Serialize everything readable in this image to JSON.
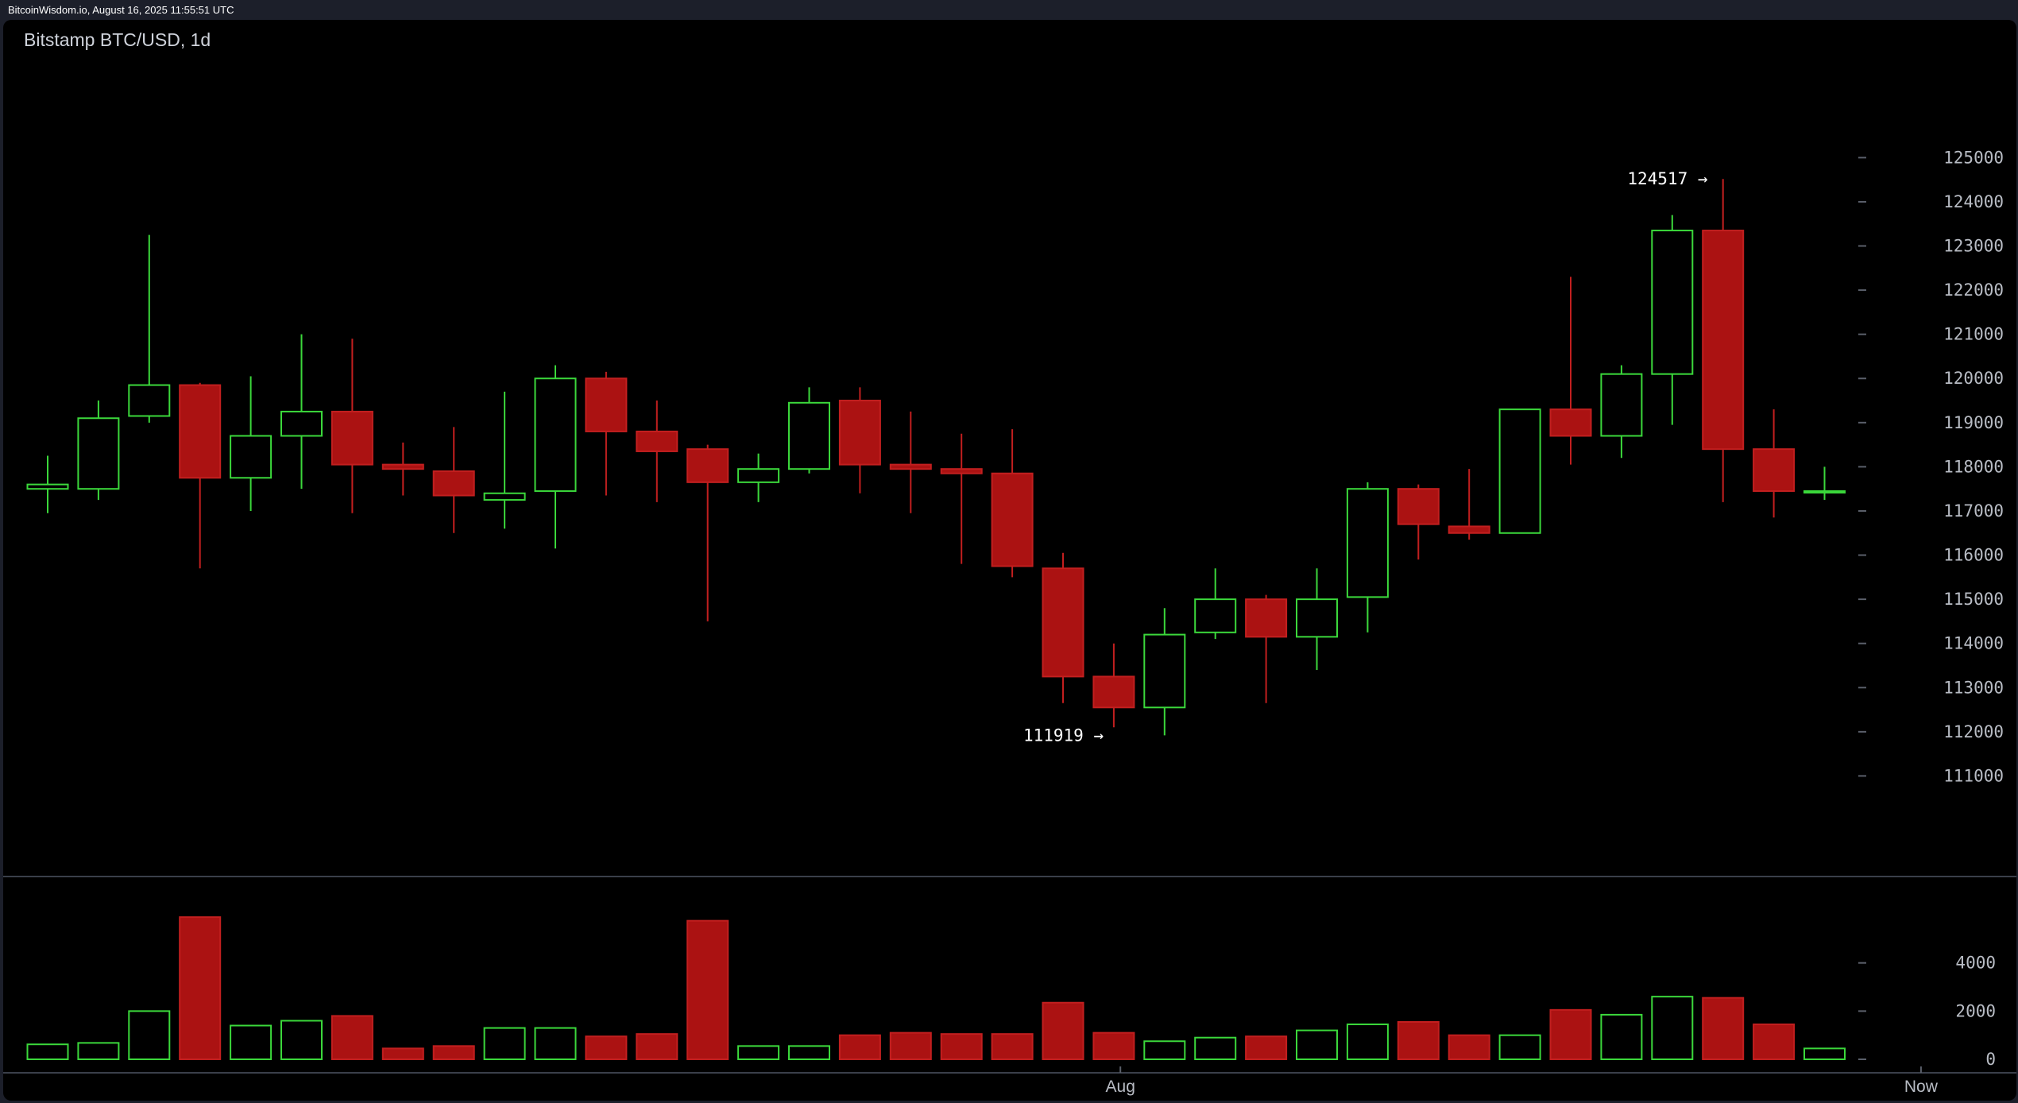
{
  "header": {
    "timestamp": "BitcoinWisdom.io, August 16, 2025 11:55:51 UTC"
  },
  "colors": {
    "up": "#3bd83b",
    "down": "#ab1212",
    "down_border": "#c21f1f",
    "background": "#000000",
    "frame": "#1c1f2a",
    "axis_text": "#b8bcc4",
    "separator": "#3a3f4a"
  },
  "chart_data": {
    "type": "candlestick",
    "title": "Bitstamp BTC/USD, 1d",
    "price_axis": {
      "ylim": [
        110000,
        126500
      ],
      "ticks": [
        "125000",
        "124000",
        "123000",
        "122000",
        "121000",
        "120000",
        "119000",
        "118000",
        "117000",
        "116000",
        "115000",
        "114000",
        "113000",
        "112000",
        "111000"
      ]
    },
    "volume_axis": {
      "ylim": [
        0,
        6200
      ],
      "ticks": [
        "4000",
        "2000",
        "0"
      ]
    },
    "x_axis": {
      "labels": [
        {
          "text": "Aug",
          "index": 21.13
        },
        {
          "text": "Now",
          "index": 36.9
        }
      ]
    },
    "annotations": [
      {
        "text": "124517 →",
        "index": 32.7,
        "price": 124517
      },
      {
        "text": "111919 →",
        "index": 20.8,
        "price": 111919
      }
    ],
    "candles": [
      {
        "o": 117500,
        "h": 118250,
        "l": 116950,
        "c": 117600,
        "v": 620
      },
      {
        "o": 117500,
        "h": 119500,
        "l": 117250,
        "c": 119100,
        "v": 680
      },
      {
        "o": 119150,
        "h": 123250,
        "l": 119000,
        "c": 119850,
        "v": 2000
      },
      {
        "o": 119850,
        "h": 119900,
        "l": 115700,
        "c": 117750,
        "v": 5900
      },
      {
        "o": 117750,
        "h": 120050,
        "l": 117000,
        "c": 118700,
        "v": 1400
      },
      {
        "o": 118700,
        "h": 121000,
        "l": 117500,
        "c": 119250,
        "v": 1600
      },
      {
        "o": 119250,
        "h": 120900,
        "l": 116950,
        "c": 118050,
        "v": 1800
      },
      {
        "o": 118050,
        "h": 118550,
        "l": 117350,
        "c": 117950,
        "v": 450
      },
      {
        "o": 117900,
        "h": 118900,
        "l": 116500,
        "c": 117350,
        "v": 550
      },
      {
        "o": 117250,
        "h": 119700,
        "l": 116600,
        "c": 117400,
        "v": 1300
      },
      {
        "o": 117450,
        "h": 120300,
        "l": 116150,
        "c": 120000,
        "v": 1300
      },
      {
        "o": 120000,
        "h": 120150,
        "l": 117350,
        "c": 118800,
        "v": 950
      },
      {
        "o": 118800,
        "h": 119500,
        "l": 117200,
        "c": 118350,
        "v": 1050
      },
      {
        "o": 118400,
        "h": 118500,
        "l": 114500,
        "c": 117650,
        "v": 5750
      },
      {
        "o": 117650,
        "h": 118300,
        "l": 117200,
        "c": 117950,
        "v": 550
      },
      {
        "o": 117950,
        "h": 119800,
        "l": 117850,
        "c": 119450,
        "v": 550
      },
      {
        "o": 119500,
        "h": 119800,
        "l": 117400,
        "c": 118050,
        "v": 1000
      },
      {
        "o": 118050,
        "h": 119250,
        "l": 116950,
        "c": 117950,
        "v": 1100
      },
      {
        "o": 117950,
        "h": 118750,
        "l": 115800,
        "c": 117850,
        "v": 1050
      },
      {
        "o": 117850,
        "h": 118850,
        "l": 115500,
        "c": 115750,
        "v": 1050
      },
      {
        "o": 115700,
        "h": 116050,
        "l": 112650,
        "c": 113250,
        "v": 2350
      },
      {
        "o": 113250,
        "h": 114000,
        "l": 112100,
        "c": 112550,
        "v": 1100
      },
      {
        "o": 112550,
        "h": 114800,
        "l": 111919,
        "c": 114200,
        "v": 750
      },
      {
        "o": 114250,
        "h": 115700,
        "l": 114100,
        "c": 115000,
        "v": 900
      },
      {
        "o": 115000,
        "h": 115100,
        "l": 112650,
        "c": 114150,
        "v": 950
      },
      {
        "o": 114150,
        "h": 115700,
        "l": 113400,
        "c": 115000,
        "v": 1200
      },
      {
        "o": 115050,
        "h": 117650,
        "l": 114250,
        "c": 117500,
        "v": 1450
      },
      {
        "o": 117500,
        "h": 117600,
        "l": 115900,
        "c": 116700,
        "v": 1550
      },
      {
        "o": 116650,
        "h": 117950,
        "l": 116350,
        "c": 116500,
        "v": 1000
      },
      {
        "o": 116500,
        "h": 119300,
        "l": 116500,
        "c": 119300,
        "v": 1000
      },
      {
        "o": 119300,
        "h": 122300,
        "l": 118050,
        "c": 118700,
        "v": 2050
      },
      {
        "o": 118700,
        "h": 120300,
        "l": 118200,
        "c": 120100,
        "v": 1850
      },
      {
        "o": 120100,
        "h": 123700,
        "l": 118950,
        "c": 123350,
        "v": 2600
      },
      {
        "o": 123350,
        "h": 124517,
        "l": 117200,
        "c": 118400,
        "v": 2550
      },
      {
        "o": 118400,
        "h": 119300,
        "l": 116850,
        "c": 117450,
        "v": 1450
      },
      {
        "o": 117450,
        "h": 118000,
        "l": 117250,
        "c": 117450,
        "v": 450
      }
    ]
  }
}
